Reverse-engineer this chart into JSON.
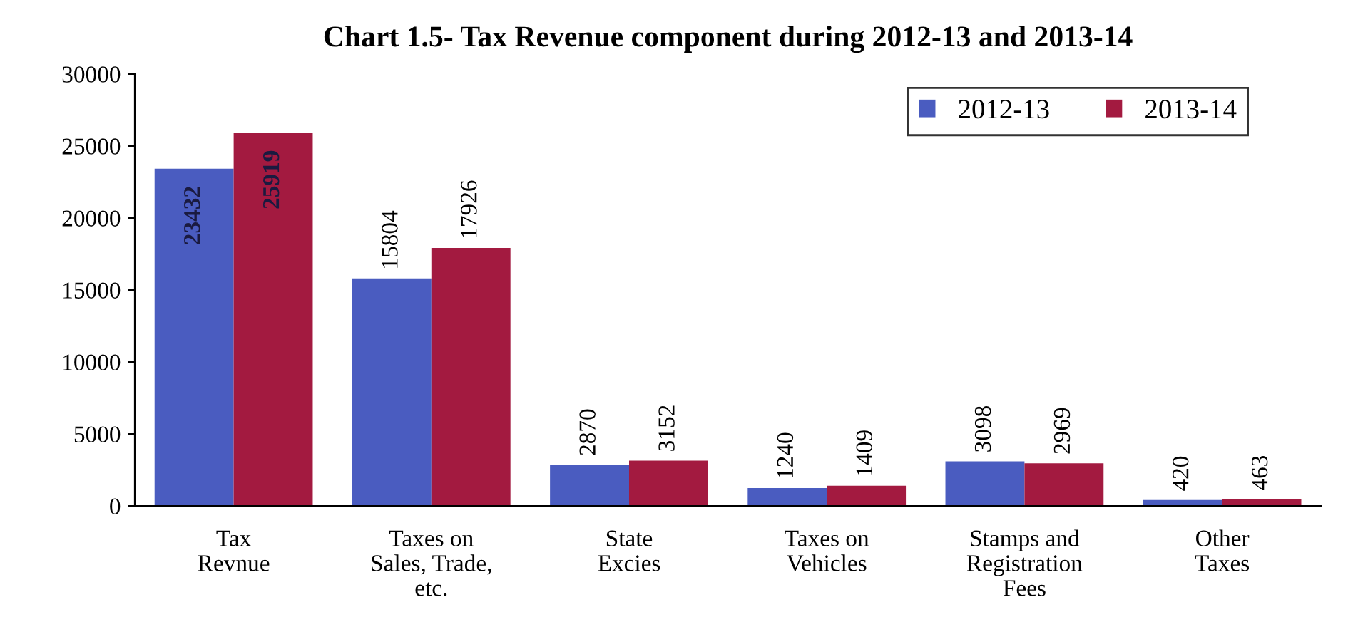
{
  "chart_data": {
    "type": "bar",
    "title": "Chart 1.5- Tax Revenue component during 2012-13 and 2013-14",
    "categories": [
      "Tax\nRevnue",
      "Taxes on\nSales, Trade,\netc.",
      "State\nExcies",
      "Taxes on\nVehicles",
      "Stamps and\nRegistration\nFees",
      "Other\nTaxes"
    ],
    "series": [
      {
        "name": "2012-13",
        "color": "#4a5cc0",
        "values": [
          23432,
          15804,
          2870,
          1240,
          3098,
          420
        ]
      },
      {
        "name": "2013-14",
        "color": "#a31a40",
        "values": [
          25919,
          17926,
          3152,
          1409,
          2969,
          463
        ]
      }
    ],
    "ylim": [
      0,
      30000
    ],
    "yticks": [
      0,
      5000,
      10000,
      15000,
      20000,
      25000,
      30000
    ],
    "grid": false,
    "legend": "top right",
    "data_labels": true
  }
}
